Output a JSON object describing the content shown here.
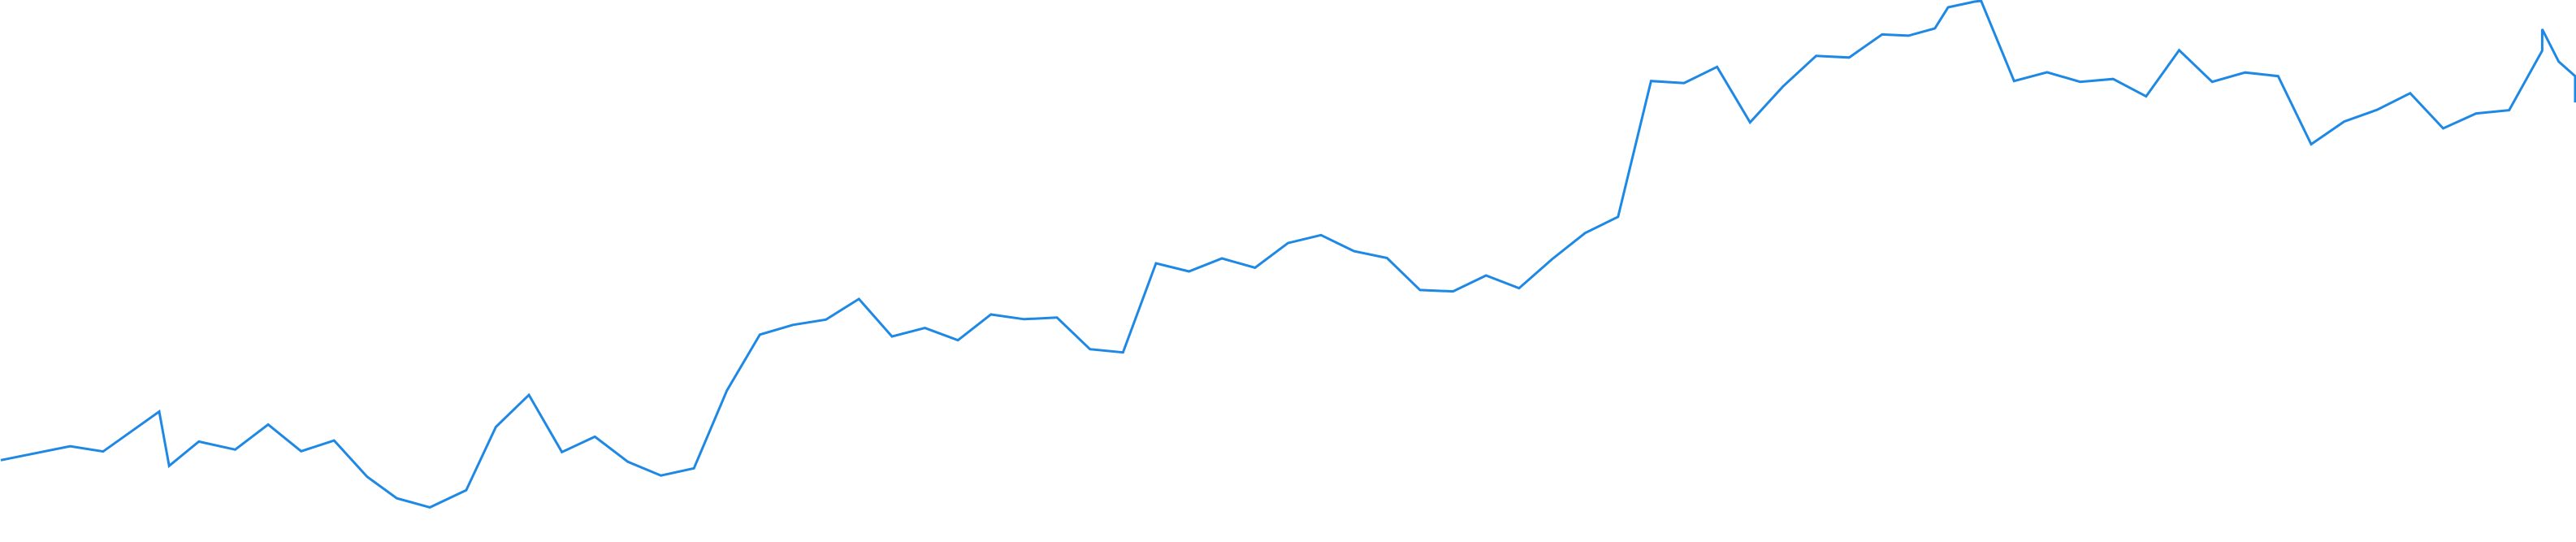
{
  "chart_data": {
    "type": "line",
    "title": "",
    "xlabel": "",
    "ylabel": "",
    "grid": false,
    "legend": "none",
    "xlim": [
      0,
      78
    ],
    "ylim": [
      0,
      667
    ],
    "series": [
      {
        "color": "#1e88e5",
        "values": [
          100.0,
          117.2,
          110.7,
          160.0,
          93.0,
          123.0,
          113.0,
          144.0,
          111.0,
          124.3,
          79.5,
          53.0,
          41.7,
          63.0,
          141.0,
          180.5,
          110.0,
          129.0,
          98.0,
          81.0,
          90.0,
          186.0,
          255.0,
          267.0,
          273.5,
          299.0,
          252.7,
          263.2,
          248.0,
          279.8,
          274.0,
          276.0,
          237.0,
          233.0,
          343.0,
          333.0,
          349.0,
          337.5,
          368.0,
          377.8,
          358.0,
          349.5,
          310.0,
          308.3,
          328.0,
          312.2,
          348.0,
          380.3,
          400.4,
          568.0,
          565.5,
          585.5,
          517.0,
          561.4,
          599.0,
          597.0,
          625.5,
          624.0,
          633.0,
          659.0,
          666.0,
          667.0,
          568.0,
          578.8,
          567.0,
          570.5,
          549.0,
          606.0,
          567.0,
          578.5,
          574.0,
          490.0,
          518.0,
          532.5,
          553.0,
          509.5,
          528.0,
          532.0,
          605.5,
          632.0,
          592.0,
          574.0,
          541.5,
          551.5
        ],
        "x": [
          0,
          2.1,
          3.1,
          4.8,
          5.1,
          6.0,
          7.1,
          8.1,
          9.1,
          10.1,
          11.1,
          12.0,
          13.0,
          14.1,
          15.0,
          16.0,
          17.0,
          18.0,
          19.0,
          20.0,
          21.0,
          22.0,
          23.0,
          24.0,
          25.0,
          26.0,
          27.0,
          28.0,
          29.0,
          30.0,
          31.0,
          32.0,
          33.0,
          34.0,
          35.0,
          36.0,
          37.0,
          38.0,
          39.0,
          40.0,
          41.0,
          42.0,
          43.0,
          44.0,
          45.0,
          46.0,
          47.0,
          48.0,
          49.0,
          50.0,
          51.0,
          52.0,
          53.0,
          54.0,
          55.0,
          56.0,
          57.0,
          57.8,
          58.6,
          59.0,
          59.8,
          60.0,
          61.0,
          62.0,
          63.0,
          64.0,
          65.0,
          66.0,
          67.0,
          68.0,
          69.0,
          70.0,
          71.0,
          72.0,
          73.0,
          74.0,
          75.0,
          76.0,
          77.0,
          77.0,
          77.5,
          78.0,
          78.0,
          78.0
        ]
      }
    ]
  }
}
